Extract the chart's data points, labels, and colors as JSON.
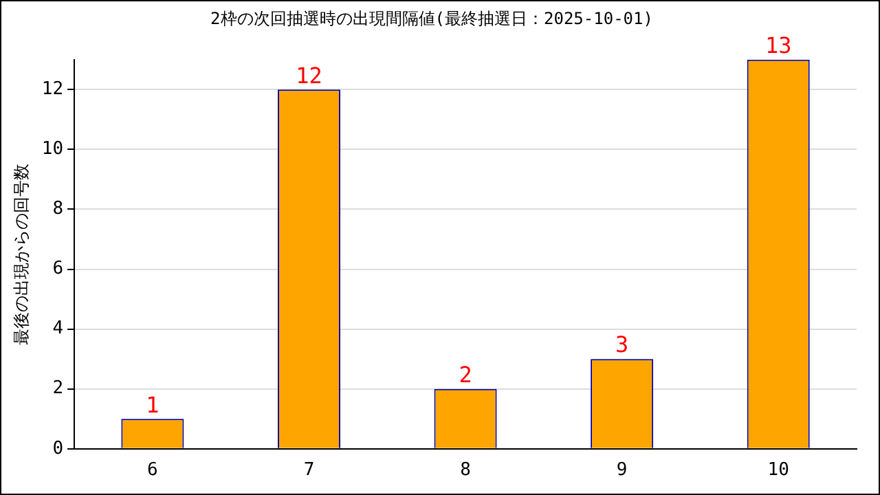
{
  "chart_data": {
    "type": "bar",
    "title": "2枠の次回抽選時の出現間隔値(最終抽選日：2025-10-01)",
    "ylabel": "最後の出現からの回号数",
    "categories": [
      "6",
      "7",
      "8",
      "9",
      "10"
    ],
    "values": [
      1,
      12,
      2,
      3,
      13
    ],
    "color": "#ffa500",
    "ylim": [
      0,
      13
    ],
    "yticks": [
      0,
      2,
      4,
      6,
      8,
      10,
      12
    ],
    "grid": "y",
    "data_labels": true,
    "legend": false
  }
}
